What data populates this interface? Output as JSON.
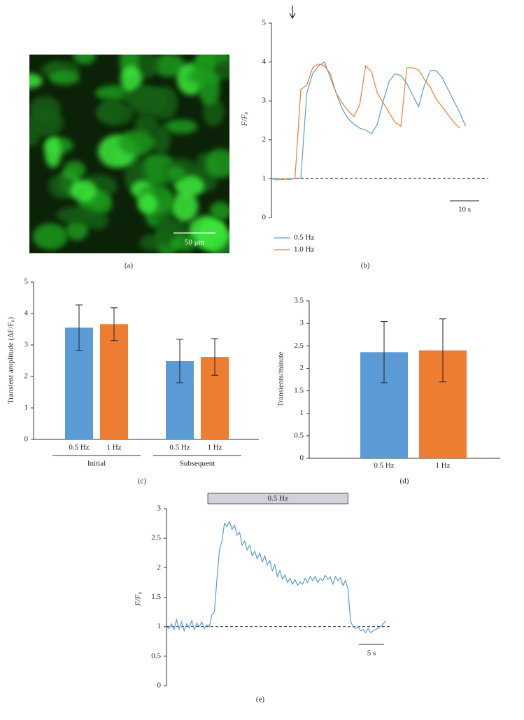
{
  "chart_data": [
    {
      "type": "image",
      "panel_label": "(a)",
      "scale_bar": {
        "label": "50 μm"
      }
    },
    {
      "type": "line",
      "panel_label": "(b)",
      "y_label": "F/F₀",
      "x": [
        0,
        2,
        4,
        6,
        8,
        10,
        12,
        14,
        16,
        18,
        20,
        22,
        24,
        26,
        28,
        30,
        32,
        34,
        36,
        38,
        40,
        42,
        44,
        46,
        48,
        50,
        52,
        54,
        56,
        58,
        60,
        62,
        64,
        66
      ],
      "xlim": [
        0,
        73
      ],
      "ylim": [
        0,
        5
      ],
      "yticks": [
        0,
        1,
        2,
        3,
        4,
        5
      ],
      "ref_line": 1,
      "scale_bar": {
        "label": "10 s",
        "value": 10
      },
      "series": [
        {
          "name": "0.5 Hz",
          "color": "#5b9bd5",
          "values": [
            1.0,
            1.0,
            0.98,
            1.0,
            1.0,
            1.02,
            3.2,
            3.7,
            3.9,
            4.0,
            3.6,
            3.2,
            2.8,
            2.55,
            2.4,
            2.3,
            2.25,
            2.15,
            2.4,
            3.0,
            3.5,
            3.7,
            3.65,
            3.45,
            3.15,
            2.85,
            3.4,
            3.78,
            3.78,
            3.6,
            3.3,
            3.0,
            2.7,
            2.35
          ]
        },
        {
          "name": "1.0 Hz",
          "color": "#ed7d31",
          "values": [
            1.0,
            0.97,
            1.0,
            0.98,
            1.0,
            3.3,
            3.4,
            3.85,
            3.95,
            3.9,
            3.7,
            3.2,
            2.95,
            2.75,
            2.6,
            2.9,
            3.9,
            3.75,
            3.2,
            2.95,
            2.7,
            2.45,
            2.35,
            3.85,
            3.85,
            3.8,
            3.55,
            3.35,
            3.05,
            2.85,
            2.65,
            2.45,
            2.3,
            null
          ]
        }
      ]
    },
    {
      "type": "bar",
      "panel_label": "(c)",
      "y_label": "Transient amplitude (ΔF/F₀)",
      "categories": [
        "Initial",
        "Subsequent"
      ],
      "ylim": [
        0,
        5
      ],
      "yticks": [
        0,
        1,
        2,
        3,
        4,
        5
      ],
      "series": [
        {
          "name": "0.5 Hz",
          "color": "#5b9bd5",
          "values": [
            3.55,
            2.49
          ],
          "errors": [
            0.72,
            0.69
          ]
        },
        {
          "name": "1 Hz",
          "color": "#ed7d31",
          "values": [
            3.66,
            2.62
          ],
          "errors": [
            0.52,
            0.58
          ]
        }
      ]
    },
    {
      "type": "bar",
      "panel_label": "(d)",
      "y_label": "Transients/minute",
      "categories": [
        "0.5 Hz",
        "1 Hz"
      ],
      "values": [
        2.36,
        2.4
      ],
      "errors": [
        0.68,
        0.7
      ],
      "colors": [
        "#5b9bd5",
        "#ed7d31"
      ],
      "ylim": [
        0,
        3.5
      ],
      "yticks": [
        0,
        0.5,
        1,
        1.5,
        2,
        2.5,
        3,
        3.5
      ]
    },
    {
      "type": "line",
      "panel_label": "(e)",
      "y_label": "F/F₀",
      "color": "#5b9bd5",
      "x": [
        0,
        0.5,
        1,
        1.5,
        2,
        2.5,
        3,
        3.5,
        4,
        4.5,
        5,
        5.5,
        6,
        6.5,
        7,
        7.5,
        8,
        8.5,
        9,
        9.5,
        10,
        10.5,
        11,
        11.5,
        12,
        12.5,
        13,
        13.5,
        14,
        14.5,
        15,
        15.5,
        16,
        16.5,
        17,
        17.5,
        18,
        18.5,
        19,
        19.5,
        20,
        20.5,
        21,
        21.5,
        22,
        22.5,
        23,
        23.5,
        24,
        24.5,
        25,
        25.5,
        26,
        26.5,
        27,
        27.5,
        28,
        28.5,
        29,
        29.5,
        30,
        30.5,
        31,
        31.5,
        32,
        32.5,
        33,
        33.5,
        34,
        34.5,
        35,
        35.5,
        36,
        36.5,
        37,
        37.5,
        38,
        38.5,
        39,
        39.5,
        40,
        40.5,
        41,
        41.5,
        42,
        42.5,
        43,
        43.5
      ],
      "values": [
        1.0,
        0.97,
        1.05,
        0.95,
        1.12,
        0.96,
        1.08,
        0.93,
        1.05,
        0.98,
        1.1,
        0.95,
        1.06,
        1.0,
        1.08,
        0.97,
        1.03,
        1.0,
        1.2,
        1.25,
        1.8,
        2.3,
        2.45,
        2.75,
        2.7,
        2.78,
        2.65,
        2.72,
        2.55,
        2.6,
        2.38,
        2.45,
        2.3,
        2.38,
        2.2,
        2.28,
        2.15,
        2.25,
        2.1,
        2.2,
        2.05,
        2.12,
        1.95,
        2.05,
        1.85,
        1.95,
        1.8,
        1.88,
        1.75,
        1.82,
        1.72,
        1.8,
        1.7,
        1.76,
        1.72,
        1.82,
        1.75,
        1.85,
        1.78,
        1.85,
        1.75,
        1.82,
        1.78,
        1.87,
        1.8,
        1.84,
        1.72,
        1.85,
        1.78,
        1.83,
        1.7,
        1.78,
        1.65,
        1.1,
        1.0,
        0.97,
        1.0,
        0.93,
        0.95,
        0.9,
        0.97,
        0.9,
        0.93,
        0.95,
        0.98,
        1.0,
        1.05,
        1.1
      ],
      "xlim": [
        0,
        44
      ],
      "ylim": [
        0,
        3
      ],
      "yticks": [
        0,
        0.5,
        1,
        1.5,
        2,
        2.5,
        3
      ],
      "ref_line": 1,
      "scale_bar": {
        "label": "5 s",
        "value": 5
      },
      "stimulus": {
        "label": "0.5 Hz",
        "start": 8.2,
        "end": 36
      }
    }
  ]
}
